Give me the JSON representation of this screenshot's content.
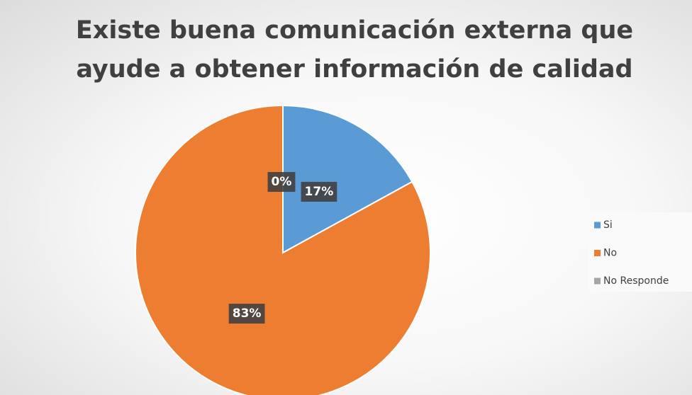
{
  "chart_data": {
    "type": "pie",
    "title": "Existe buena comunicación externa que ayude a obtener información de calidad",
    "categories": [
      "Si",
      "No",
      "No Responde"
    ],
    "values": [
      17,
      83,
      0
    ],
    "value_labels": [
      "17%",
      "83%",
      "0%"
    ],
    "colors": [
      "#5b9bd5",
      "#ed7d31",
      "#a5a5a5"
    ],
    "legend": "right"
  }
}
